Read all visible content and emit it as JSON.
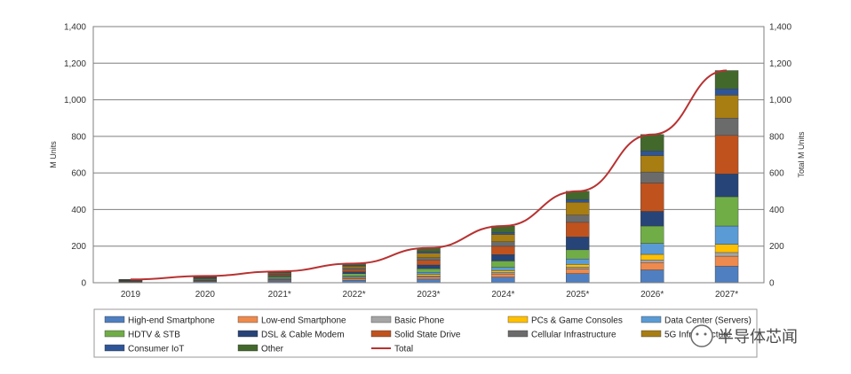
{
  "chart_data": {
    "type": "bar",
    "stacked": true,
    "categories": [
      "2019",
      "2020",
      "2021*",
      "2022*",
      "2023*",
      "2024*",
      "2025*",
      "2026*",
      "2027*"
    ],
    "ylabel": "M Units",
    "y2label": "Total M Units",
    "ylim": [
      0,
      1400
    ],
    "y2lim": [
      0,
      1400
    ],
    "yticks": [
      "0",
      "200",
      "400",
      "600",
      "800",
      "1,000",
      "1,200",
      "1,400"
    ],
    "y2ticks": [
      "0",
      "200",
      "400",
      "600",
      "800",
      "1,000",
      "1,200",
      "1,400"
    ],
    "grid": true,
    "legend_position": "bottom",
    "series": [
      {
        "name": "High-end Smartphone",
        "color": "#4f7fc0",
        "values": [
          4,
          7,
          10,
          14,
          20,
          30,
          50,
          70,
          90
        ]
      },
      {
        "name": "Low-end Smartphone",
        "color": "#ee8a4d",
        "values": [
          2,
          4,
          5,
          8,
          12,
          18,
          25,
          40,
          55
        ]
      },
      {
        "name": "Basic Phone",
        "color": "#a5a5a5",
        "values": [
          0,
          1,
          2,
          3,
          5,
          8,
          10,
          15,
          20
        ]
      },
      {
        "name": "PCs & Game Consoles",
        "color": "#ffc000",
        "values": [
          1,
          2,
          3,
          5,
          8,
          10,
          15,
          30,
          45
        ]
      },
      {
        "name": "Data Center (Servers)",
        "color": "#5b9bd5",
        "values": [
          2,
          3,
          5,
          8,
          12,
          18,
          30,
          60,
          100
        ]
      },
      {
        "name": "HDTV & STB",
        "color": "#70ad47",
        "values": [
          3,
          5,
          8,
          12,
          20,
          35,
          50,
          95,
          160
        ]
      },
      {
        "name": "DSL & Cable Modem",
        "color": "#264478",
        "values": [
          1,
          3,
          5,
          10,
          20,
          35,
          70,
          80,
          125
        ]
      },
      {
        "name": "Solid State Drive",
        "color": "#c0521e",
        "values": [
          1,
          3,
          6,
          12,
          25,
          45,
          80,
          155,
          210
        ]
      },
      {
        "name": "Cellular Infrastructure",
        "color": "#6b6b6b",
        "values": [
          1,
          2,
          4,
          8,
          15,
          25,
          40,
          60,
          95
        ]
      },
      {
        "name": "5G Infrastructure",
        "color": "#a87d12",
        "values": [
          1,
          2,
          5,
          10,
          25,
          40,
          70,
          90,
          125
        ]
      },
      {
        "name": "Consumer IoT",
        "color": "#2e5597",
        "values": [
          1,
          2,
          3,
          5,
          8,
          10,
          15,
          25,
          35
        ]
      },
      {
        "name": "Other",
        "color": "#43682b",
        "values": [
          1,
          3,
          6,
          10,
          20,
          36,
          45,
          90,
          100
        ]
      }
    ],
    "total": {
      "name": "Total",
      "color": "#b83232",
      "values": [
        18,
        37,
        62,
        105,
        190,
        310,
        500,
        810,
        1160
      ]
    }
  },
  "legend_labels": [
    "High-end Smartphone",
    "Low-end Smartphone",
    "Basic Phone",
    "PCs & Game Consoles",
    "Data Center (Servers)",
    "HDTV & STB",
    "DSL & Cable Modem",
    "Solid State Drive",
    "Cellular Infrastructure",
    "5G Infrastructure",
    "Consumer IoT",
    "Other",
    "Total"
  ],
  "watermark": "半导体芯闻"
}
